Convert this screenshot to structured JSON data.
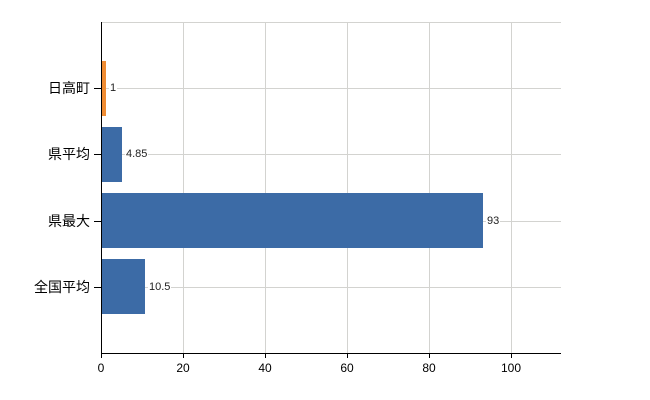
{
  "chart_data": {
    "type": "bar",
    "orientation": "horizontal",
    "title": "",
    "xlabel": "",
    "ylabel": "",
    "categories": [
      "日高町",
      "県平均",
      "県最大",
      "全国平均"
    ],
    "values": [
      1,
      4.85,
      93,
      10.5
    ],
    "value_labels": [
      "1",
      "4.85",
      "93",
      "10.5"
    ],
    "highlight_category": "日高町",
    "xticks": [
      "0",
      "20",
      "40",
      "60",
      "80",
      "100"
    ],
    "xtick_values": [
      0,
      20,
      40,
      60,
      80,
      100
    ],
    "xlim": [
      0,
      112
    ],
    "grid": true,
    "legend": false
  },
  "colors": {
    "bar_default": "#3C6BA6",
    "bar_highlight": "#EF8C33",
    "gridline": "#D3D3D0",
    "axis": "#000000",
    "tick_text": "#000000",
    "category_text": "#000000",
    "value_text": "#222222",
    "background": "#FFFFFF"
  }
}
